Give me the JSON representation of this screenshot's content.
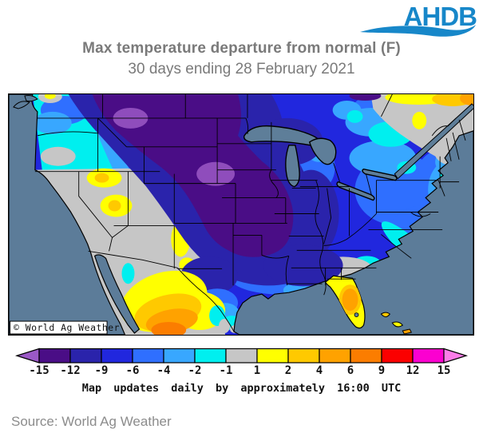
{
  "brand": {
    "logo_text": "AHDB",
    "logo_color": "#1787C9"
  },
  "header": {
    "title": "Max temperature departure from normal (F)",
    "subtitle": "30 days ending 28 February 2021",
    "text_color": "#7a7a7a"
  },
  "map": {
    "watermark": "© World Ag Weather",
    "ocean_color": "#5C7C99",
    "description": "Filled contour map of the continental United States (with adjoining Canada and Mexico) showing maximum temperature departure from normal in °F",
    "anomaly_palette": {
      "below_-15": "#9B59C6",
      "-15_-12": "#4A0D86",
      "-12_-9": "#2A23AB",
      "-9_-6": "#2127DE",
      "-6_-4": "#2F6FFF",
      "-4_-2": "#38A7FF",
      "-2_-1": "#00EFEF",
      "-1_1": "#C6C6C6",
      "1_2": "#FFFF00",
      "2_4": "#FFC900",
      "4_6": "#FFA200",
      "6_9": "#FB7D00",
      "9_12": "#FB0000",
      "12_15": "#FB00D0",
      "above_15": "#FB7DE8"
    }
  },
  "colorbar": {
    "arrow_left": "#9B59C6",
    "arrow_right": "#FB7DE8",
    "segments": [
      {
        "from": -15,
        "to": -12,
        "color": "#4A0D86"
      },
      {
        "from": -12,
        "to": -9,
        "color": "#2A23AB"
      },
      {
        "from": -9,
        "to": -6,
        "color": "#2127DE"
      },
      {
        "from": -6,
        "to": -4,
        "color": "#2F6FFF"
      },
      {
        "from": -4,
        "to": -2,
        "color": "#38A7FF"
      },
      {
        "from": -2,
        "to": -1,
        "color": "#00EFEF"
      },
      {
        "from": -1,
        "to": 1,
        "color": "#C6C6C6"
      },
      {
        "from": 1,
        "to": 2,
        "color": "#FFFF00"
      },
      {
        "from": 2,
        "to": 4,
        "color": "#FFC900"
      },
      {
        "from": 4,
        "to": 6,
        "color": "#FFA200"
      },
      {
        "from": 6,
        "to": 9,
        "color": "#FB7D00"
      },
      {
        "from": 9,
        "to": 12,
        "color": "#FB0000"
      },
      {
        "from": 12,
        "to": 15,
        "color": "#FB00D0"
      }
    ],
    "ticks": [
      "-15",
      "-12",
      "-9",
      "-6",
      "-4",
      "-2",
      "-1",
      "1",
      "2",
      "4",
      "6",
      "9",
      "12",
      "15"
    ],
    "caption": "Map updates daily by approximately 16:00 UTC"
  },
  "source": {
    "text": "Source: World Ag Weather"
  }
}
